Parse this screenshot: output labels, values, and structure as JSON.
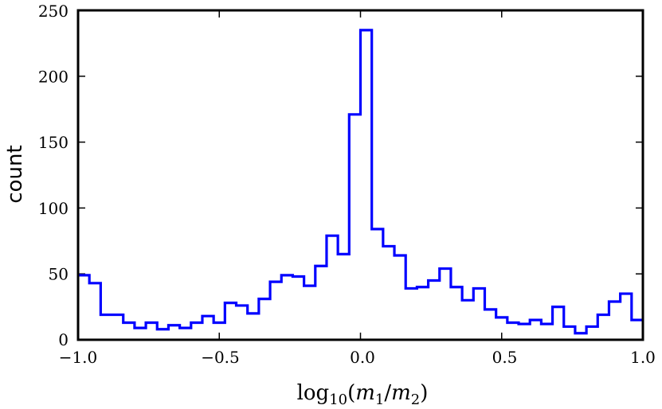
{
  "chart_data": {
    "type": "histogram",
    "xlabel": "log10(m1/m2)",
    "ylabel": "count",
    "xlim": [
      -1.0,
      1.0
    ],
    "ylim": [
      0,
      250
    ],
    "x_ticks": [
      "−1.0",
      "−0.5",
      "0.0",
      "0.5",
      "1.0"
    ],
    "y_ticks": [
      "0",
      "50",
      "100",
      "150",
      "200",
      "250"
    ],
    "bins": {
      "edges": [
        -1.0,
        -0.96,
        -0.92,
        -0.88,
        -0.84,
        -0.8,
        -0.76,
        -0.72,
        -0.68,
        -0.64,
        -0.6,
        -0.56,
        -0.52,
        -0.48,
        -0.44,
        -0.4,
        -0.36,
        -0.32,
        -0.28,
        -0.24,
        -0.2,
        -0.16,
        -0.12,
        -0.08,
        -0.04,
        0.0,
        0.04,
        0.08,
        0.12,
        0.16,
        0.2,
        0.24,
        0.28,
        0.32,
        0.36,
        0.4,
        0.44,
        0.48,
        0.52,
        0.56,
        0.6,
        0.64,
        0.68,
        0.72,
        0.76,
        0.8,
        0.84,
        0.88,
        0.92,
        0.96,
        1.0
      ],
      "counts": [
        49,
        43,
        19,
        19,
        13,
        9,
        13,
        8,
        11,
        9,
        13,
        18,
        13,
        28,
        26,
        20,
        31,
        44,
        49,
        48,
        41,
        56,
        79,
        65,
        171,
        235,
        84,
        71,
        64,
        39,
        40,
        45,
        54,
        40,
        30,
        39,
        23,
        17,
        13,
        12,
        15,
        12,
        25,
        10,
        5,
        10,
        19,
        29,
        35,
        15
      ]
    },
    "grid": false,
    "colors": {
      "line": "#0000ff",
      "axes": "#000000"
    }
  }
}
